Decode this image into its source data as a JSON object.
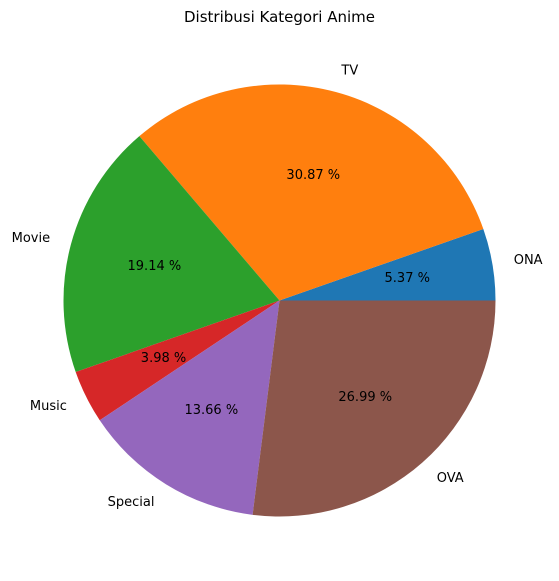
{
  "chart_data": {
    "type": "pie",
    "title": "Distribusi Kategori Anime",
    "slices": [
      {
        "label": "ONA",
        "value": 5.37,
        "pct_text": "5.37 %",
        "color": "#1f77b4"
      },
      {
        "label": "TV",
        "value": 30.87,
        "pct_text": "30.87 %",
        "color": "#ff7f0e"
      },
      {
        "label": "Movie",
        "value": 19.14,
        "pct_text": "19.14 %",
        "color": "#2ca02c"
      },
      {
        "label": "Music",
        "value": 3.98,
        "pct_text": "3.98 %",
        "color": "#d62728"
      },
      {
        "label": "Special",
        "value": 13.66,
        "pct_text": "13.66 %",
        "color": "#9467bd"
      },
      {
        "label": "OVA",
        "value": 26.99,
        "pct_text": "26.99 %",
        "color": "#8c564b"
      }
    ],
    "start_angle": "0° (3 o'clock), counterclockwise"
  }
}
